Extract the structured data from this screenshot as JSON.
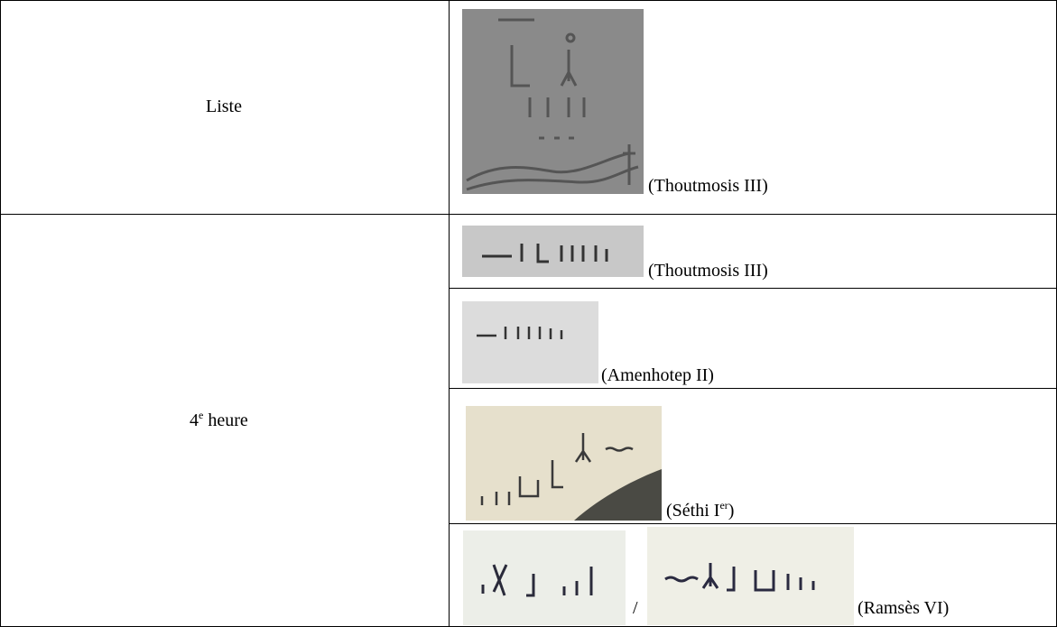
{
  "table": {
    "rows": [
      {
        "label": "Liste",
        "entries": [
          {
            "caption": "(Thoutmosis III)"
          }
        ]
      },
      {
        "label": {
          "main": "4",
          "sup": "e",
          "rest": " heure"
        },
        "entries": [
          {
            "caption": "(Thoutmosis III)"
          },
          {
            "caption": "(Amenhotep II)"
          },
          {
            "caption": {
              "main": "(Séthi I",
              "sup": "er",
              "rest": ")"
            }
          },
          {
            "separator": "/",
            "caption": "(Ramsès VI)"
          }
        ]
      }
    ]
  }
}
